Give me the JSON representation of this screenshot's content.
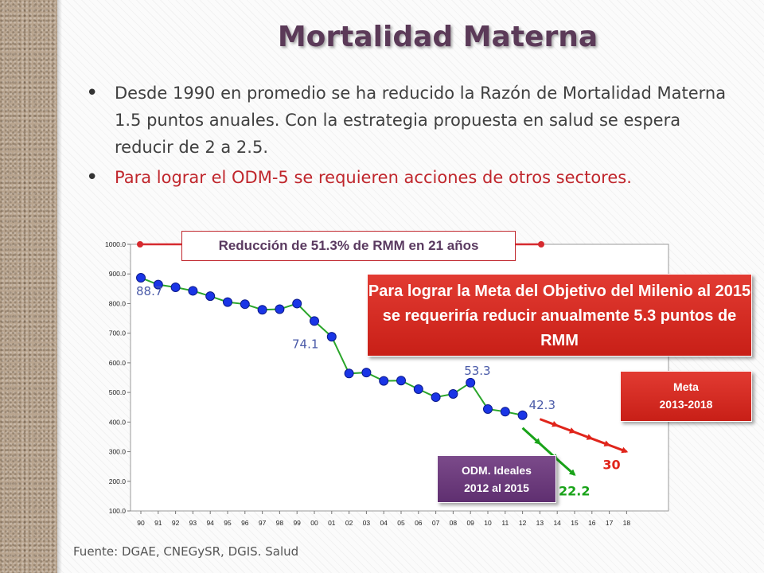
{
  "title": "Mortalidad Materna",
  "bullets": [
    "Desde 1990 en promedio se ha reducido la Razón de Mortalidad Materna 1.5 puntos anuales. Con la estrategia propuesta en salud se espera reducir de 2 a 2.5.",
    "Para lograr el ODM-5 se requieren acciones de otros sectores."
  ],
  "source": "Fuente: DGAE, CNEGySR, DGIS. Salud",
  "reduction_label": "Reducción de 51.3% de RMM en 21 años",
  "callouts": {
    "meta_odm": "Para lograr la Meta del Objetivo del Milenio al  2015 se requeriría reducir anualmente 5.3 puntos de RMM",
    "meta_period_line1": "Meta",
    "meta_period_line2": "2013-2018",
    "odm_ideales_line1": "ODM. Ideales",
    "odm_ideales_line2": "2012 al 2015"
  },
  "colors": {
    "title": "#5b3a58",
    "series_line": "#2aa52a",
    "series_marker": "#1a35e6",
    "odm_line": "#19a319",
    "meta_line": "#e0251b",
    "label_blue": "#4a5aa8",
    "label_red": "#e0251b",
    "label_green": "#19a319"
  },
  "chart_data": {
    "type": "line",
    "title": "",
    "xlabel": "",
    "ylabel": "",
    "ylim": [
      100,
      1000
    ],
    "y_ticks": [
      "100.0",
      "200.0",
      "300.0",
      "400.0",
      "500.0",
      "600.0",
      "700.0",
      "800.0",
      "900.0",
      "1000.0"
    ],
    "y_tick_values": [
      100,
      200,
      300,
      400,
      500,
      600,
      700,
      800,
      900,
      1000
    ],
    "categories": [
      "90",
      "91",
      "92",
      "93",
      "94",
      "95",
      "96",
      "97",
      "98",
      "99",
      "00",
      "01",
      "02",
      "03",
      "04",
      "05",
      "06",
      "07",
      "08",
      "09",
      "10",
      "11",
      "12",
      "13",
      "14",
      "15",
      "16",
      "17",
      "18"
    ],
    "grid": false,
    "series": [
      {
        "role": "historical",
        "x": [
          "90",
          "91",
          "92",
          "93",
          "94",
          "95",
          "96",
          "97",
          "98",
          "99",
          "00",
          "01",
          "02",
          "03",
          "04",
          "05",
          "06",
          "07",
          "08",
          "09",
          "10",
          "11",
          "12"
        ],
        "values": [
          887,
          864,
          855,
          843,
          825,
          805,
          798,
          779,
          781,
          800,
          741,
          688,
          564,
          567,
          539,
          540,
          511,
          484,
          495,
          533,
          444,
          435,
          423
        ]
      },
      {
        "role": "odm_ideal",
        "x": [
          "12",
          "13",
          "14",
          "15"
        ],
        "values": [
          380,
          327,
          274,
          222
        ]
      },
      {
        "role": "meta",
        "x": [
          "13",
          "14",
          "15",
          "16",
          "17",
          "18"
        ],
        "values": [
          410,
          388,
          366,
          344,
          322,
          300
        ]
      }
    ],
    "data_labels": [
      {
        "x": "90",
        "y": 887,
        "text": "88.7",
        "color": "blue"
      },
      {
        "x": "00",
        "y": 741,
        "text": "74.1",
        "color": "blue"
      },
      {
        "x": "09",
        "y": 533,
        "text": "53.3",
        "color": "blue"
      },
      {
        "x": "12",
        "y": 423,
        "text": "42.3",
        "color": "blue"
      },
      {
        "x": "15",
        "y": 222,
        "text": "22.2",
        "color": "green"
      },
      {
        "x": "18",
        "y": 300,
        "text": "30",
        "color": "red"
      }
    ]
  }
}
